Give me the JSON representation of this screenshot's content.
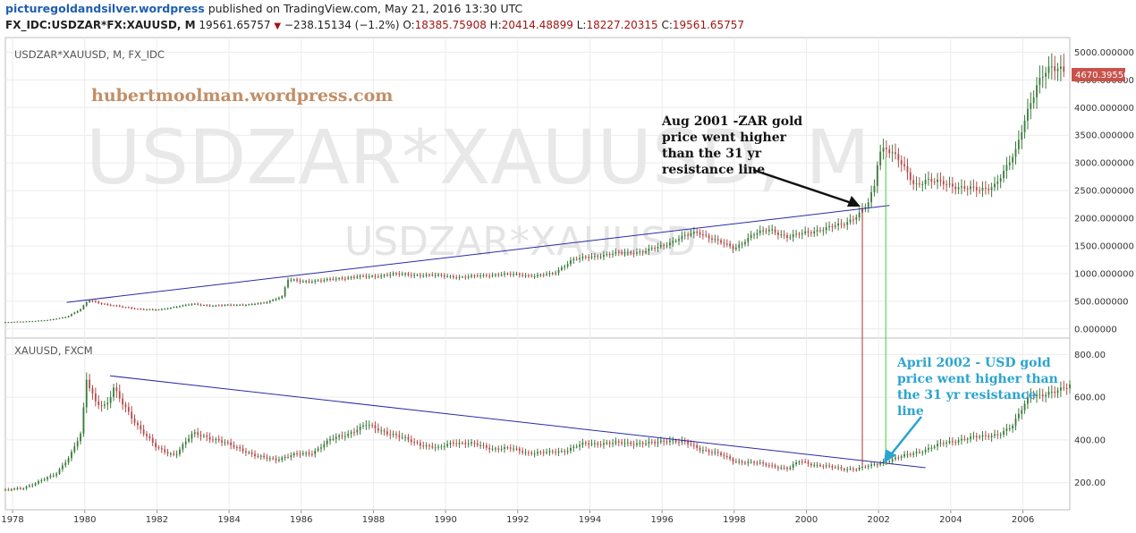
{
  "header": {
    "site": "picturegoldandsilver.wordpress",
    "published": "published on TradingView.com, May 21, 2016 13:30 UTC",
    "symbol": "FX_IDC:USDZAR*FX:XAUUSD, M",
    "last": "19561.65757",
    "change": "−238.15134 (−1.2%)",
    "o_label": "O:",
    "o_value": "18385.75908",
    "h_label": "H:",
    "h_value": "20414.48899",
    "l_label": "L:",
    "l_value": "18227.20315",
    "c_label": "C:",
    "c_value": "19561.65757"
  },
  "colors": {
    "up": "#3a7a3a",
    "down": "#b34a4a",
    "trendline": "#2a2aa8",
    "red_vline": "#b03030",
    "green_vline": "#3ecf3e",
    "badge": "#c9524b",
    "cyan_arrow": "#2ba4cf"
  },
  "top_panel": {
    "title": "USDZAR*XAUUSD, M, FX_IDC",
    "watermark_big": "USDZAR*XAUUSD, M",
    "watermark_small": "USDZAR*XAUUSD",
    "site_label": "hubertmoolman.wordpress.com",
    "last_price_badge": "4670.39550",
    "annotation": [
      "Aug 2001 -ZAR gold",
      "price went higher",
      "than the 31 yr",
      "resistance line"
    ]
  },
  "bottom_panel": {
    "title": "XAUUSD, FXCM",
    "annotation": [
      "April 2002 - USD gold",
      "price went higher than",
      "the 31 yr resistance",
      "line"
    ]
  },
  "chart_data": [
    {
      "type": "line",
      "title": "USDZAR*XAUUSD, M, FX_IDC",
      "xlim": [
        1977.8,
        2007.3
      ],
      "ylim": [
        -100,
        5200
      ],
      "yticks": [
        "0.000000",
        "500.000000",
        "1000.000000",
        "1500.000000",
        "2000.000000",
        "2500.000000",
        "3000.000000",
        "3500.000000",
        "4000.000000",
        "4500.000000",
        "5000.000000"
      ],
      "ytick_values": [
        0,
        500,
        1000,
        1500,
        2000,
        2500,
        3000,
        3500,
        4000,
        4500,
        5000
      ],
      "x": [
        1977.8,
        1978.5,
        1979.0,
        1979.5,
        1979.9,
        1980.1,
        1980.6,
        1981.0,
        1981.5,
        1982.0,
        1982.5,
        1983.0,
        1983.5,
        1984.0,
        1984.5,
        1985.0,
        1985.5,
        1985.6,
        1986.0,
        1986.5,
        1987.0,
        1987.5,
        1988.0,
        1988.5,
        1989.0,
        1989.5,
        1990.0,
        1990.5,
        1991.0,
        1991.5,
        1992.0,
        1992.5,
        1993.0,
        1993.5,
        1994.0,
        1994.5,
        1995.0,
        1995.5,
        1996.0,
        1996.5,
        1997.0,
        1997.5,
        1998.0,
        1998.5,
        1999.0,
        1999.5,
        2000.0,
        2000.5,
        2001.0,
        2001.3,
        2001.5,
        2001.7,
        2001.9,
        2002.0,
        2002.2,
        2002.5,
        2002.8,
        2003.0,
        2003.3,
        2003.6,
        2004.0,
        2004.4,
        2004.8,
        2005.2,
        2005.5,
        2005.8,
        2006.0,
        2006.2,
        2006.4,
        2006.6,
        2006.8,
        2007.0,
        2007.2
      ],
      "series": [
        {
          "values": [
            120,
            140,
            160,
            220,
            360,
            520,
            440,
            400,
            360,
            340,
            400,
            450,
            420,
            430,
            440,
            470,
            600,
            900,
            850,
            880,
            900,
            950,
            940,
            1000,
            970,
            980,
            950,
            940,
            960,
            990,
            980,
            960,
            1000,
            1250,
            1300,
            1350,
            1380,
            1400,
            1500,
            1650,
            1750,
            1600,
            1450,
            1700,
            1800,
            1650,
            1750,
            1800,
            1900,
            2000,
            2100,
            2250,
            2600,
            3200,
            3300,
            3100,
            2800,
            2600,
            2700,
            2650,
            2600,
            2550,
            2500,
            2600,
            2850,
            3200,
            3700,
            4100,
            4400,
            4600,
            4700,
            4750,
            4670
          ]
        }
      ],
      "trendline": {
        "x": [
          1979.5,
          2002.3
        ],
        "y": [
          480,
          2230
        ]
      },
      "vlines": [
        2001.55,
        2002.2
      ]
    },
    {
      "type": "line",
      "title": "XAUUSD, FXCM",
      "xlim": [
        1977.8,
        2007.3
      ],
      "ylim": [
        90,
        860
      ],
      "xticks": [
        "1978",
        "1980",
        "1982",
        "1984",
        "1986",
        "1988",
        "1990",
        "1992",
        "1994",
        "1996",
        "1998",
        "2000",
        "2002",
        "2004",
        "2006"
      ],
      "xtick_values": [
        1978,
        1980,
        1982,
        1984,
        1986,
        1988,
        1990,
        1992,
        1994,
        1996,
        1998,
        2000,
        2002,
        2004,
        2006
      ],
      "yticks": [
        "200.00",
        "400.00",
        "600.00",
        "800.00"
      ],
      "ytick_values": [
        200,
        400,
        600,
        800
      ],
      "x": [
        1977.8,
        1978.3,
        1978.8,
        1979.2,
        1979.6,
        1979.9,
        1980.05,
        1980.3,
        1980.6,
        1980.8,
        1981.0,
        1981.5,
        1982.0,
        1982.5,
        1983.0,
        1983.3,
        1983.8,
        1984.3,
        1984.8,
        1985.3,
        1985.8,
        1986.3,
        1986.8,
        1987.3,
        1987.8,
        1988.3,
        1988.8,
        1989.3,
        1989.8,
        1990.2,
        1990.8,
        1991.3,
        1991.8,
        1992.3,
        1992.8,
        1993.3,
        1993.8,
        1994.3,
        1994.8,
        1995.3,
        1995.8,
        1996.2,
        1996.6,
        1997.0,
        1997.5,
        1998.0,
        1998.5,
        1999.0,
        1999.5,
        1999.8,
        2000.2,
        2000.6,
        2001.0,
        2001.4,
        2001.8,
        2002.2,
        2002.6,
        2003.0,
        2003.4,
        2003.8,
        2004.2,
        2004.6,
        2005.0,
        2005.4,
        2005.7,
        2006.0,
        2006.2,
        2006.5,
        2006.8,
        2007.0,
        2007.3
      ],
      "series": [
        {
          "values": [
            165,
            175,
            210,
            240,
            330,
            430,
            680,
            580,
            560,
            640,
            580,
            460,
            360,
            330,
            430,
            420,
            390,
            360,
            320,
            310,
            330,
            340,
            400,
            430,
            470,
            440,
            410,
            380,
            360,
            390,
            380,
            360,
            360,
            340,
            340,
            350,
            380,
            385,
            385,
            385,
            385,
            400,
            390,
            360,
            340,
            300,
            295,
            280,
            265,
            300,
            285,
            275,
            265,
            265,
            280,
            300,
            320,
            340,
            360,
            385,
            400,
            410,
            420,
            430,
            460,
            560,
            620,
            600,
            620,
            640,
            660
          ]
        }
      ],
      "trendline": {
        "x": [
          1980.7,
          2003.3
        ],
        "y": [
          700,
          270
        ]
      },
      "vlines": [
        2001.55,
        2002.2
      ]
    }
  ]
}
